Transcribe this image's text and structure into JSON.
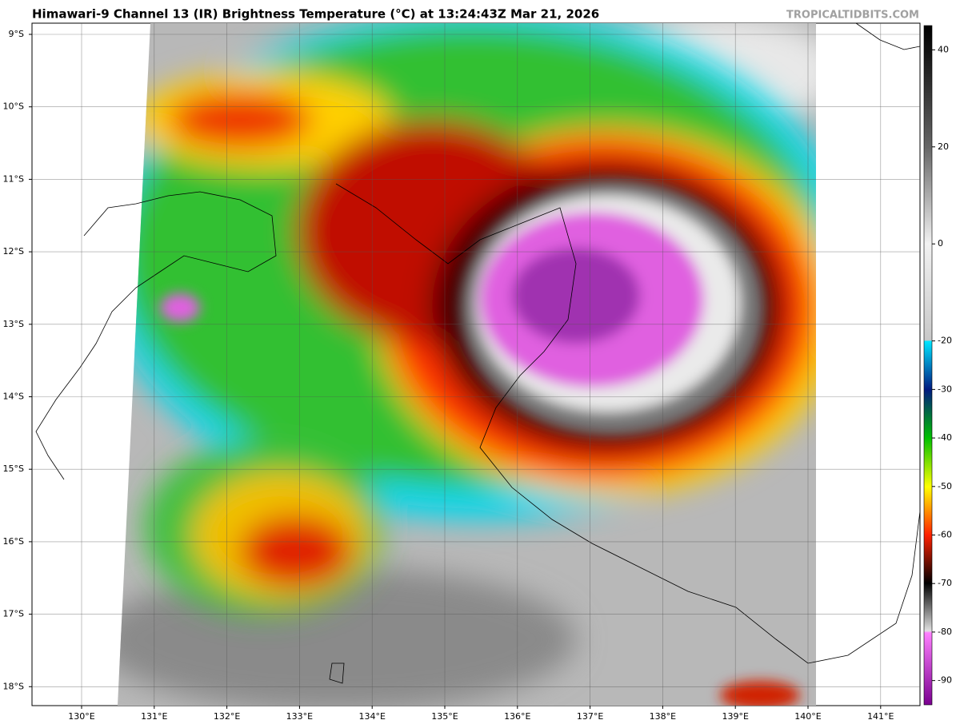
{
  "header": {
    "title": "Himawari-9 Channel 13 (IR) Brightness Temperature (°C) at 13:24:43Z Mar 21, 2026",
    "watermark": "TROPICALTIDBITS.COM"
  },
  "map": {
    "lat_labels": [
      "9°S",
      "10°S",
      "11°S",
      "12°S",
      "13°S",
      "14°S",
      "15°S",
      "16°S",
      "17°S",
      "18°S"
    ],
    "lon_labels": [
      "130°E",
      "131°E",
      "132°E",
      "133°E",
      "134°E",
      "135°E",
      "136°E",
      "137°E",
      "138°E",
      "139°E",
      "140°E",
      "141°E"
    ]
  },
  "colorbar": {
    "range": [
      -95,
      45
    ],
    "ticks": [
      40,
      20,
      0,
      -20,
      -30,
      -40,
      -50,
      -60,
      -70,
      -80,
      -90
    ]
  }
}
